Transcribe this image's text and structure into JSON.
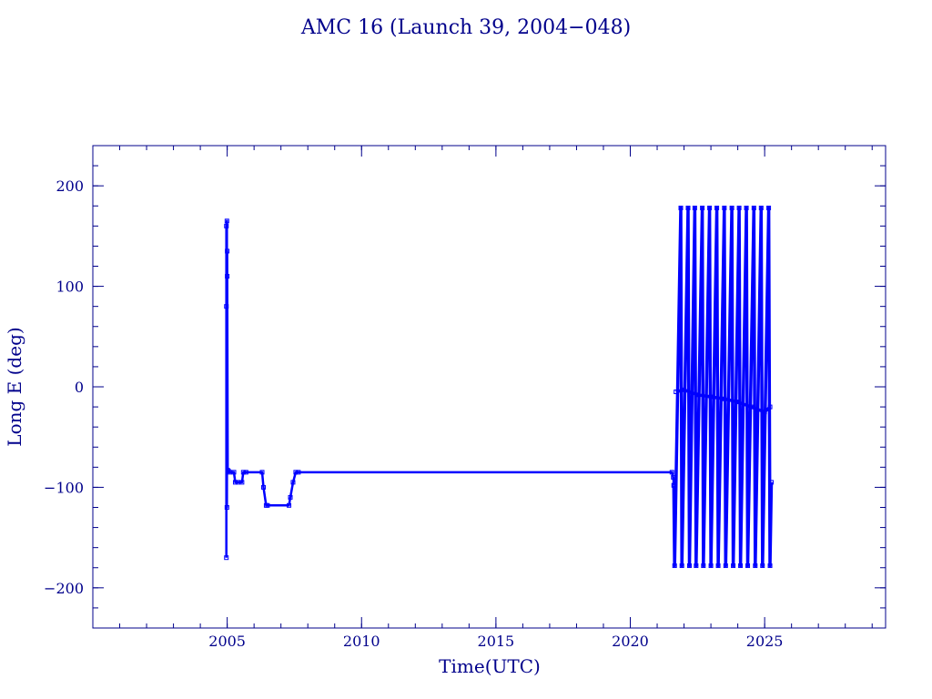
{
  "chart_data": {
    "type": "line",
    "title": "AMC 16 (Launch 39, 2004−048)",
    "xlabel": "Time(UTC)",
    "ylabel": "Long E (deg)",
    "xlim": [
      2000.0,
      2029.5
    ],
    "ylim": [
      -240,
      240
    ],
    "x_ticks": [
      2005,
      2010,
      2015,
      2020,
      2025
    ],
    "x_tick_labels": [
      "2005",
      "2010",
      "2015",
      "2020",
      "2025"
    ],
    "y_ticks": [
      -200,
      -100,
      0,
      100,
      200
    ],
    "y_tick_labels": [
      "−200",
      "−100",
      "0",
      "100",
      "200"
    ],
    "grid": false,
    "legend": "none",
    "colors": {
      "series": "#0000ff",
      "axes": "#00008b",
      "text": "#00008b"
    },
    "series": [
      {
        "x": [
          2004.97,
          2004.97,
          2004.97,
          2004.99,
          2004.99,
          2005.0,
          2005.0,
          2005.02,
          2005.05,
          2005.1,
          2005.25,
          2005.3,
          2005.4,
          2005.55,
          2005.6,
          2005.7,
          2006.3,
          2006.35,
          2006.45,
          2006.5,
          2007.3,
          2007.35,
          2007.45,
          2007.55,
          2007.65,
          2021.55,
          2021.6,
          2021.62
        ],
        "y": [
          -170,
          80,
          160,
          165,
          -120,
          110,
          135,
          -83,
          -84,
          -85,
          -85,
          -95,
          -95,
          -95,
          -85,
          -85,
          -85,
          -100,
          -118,
          -118,
          -118,
          -110,
          -95,
          -85,
          -85,
          -85,
          -90,
          -98
        ]
      },
      {
        "x": [
          2021.62,
          2021.65,
          2021.88,
          2021.92,
          2022.15,
          2022.2,
          2022.4,
          2022.45,
          2022.68,
          2022.72,
          2022.95,
          2023.0,
          2023.22,
          2023.27,
          2023.5,
          2023.55,
          2023.78,
          2023.83,
          2024.05,
          2024.1,
          2024.32,
          2024.37,
          2024.6,
          2024.65,
          2024.87,
          2024.92,
          2025.15,
          2025.2,
          2025.25
        ],
        "y": [
          -98,
          -178,
          178,
          -178,
          178,
          -178,
          178,
          -178,
          178,
          -178,
          178,
          -178,
          178,
          -178,
          178,
          -178,
          178,
          -178,
          178,
          -178,
          178,
          -178,
          178,
          -178,
          178,
          -178,
          178,
          -178,
          -95
        ]
      },
      {
        "x": [
          2021.7,
          2022.0,
          2022.5,
          2023.0,
          2023.5,
          2024.0,
          2024.5,
          2025.0,
          2025.2
        ],
        "y": [
          -5,
          -3,
          -8,
          -10,
          -12,
          -15,
          -20,
          -25,
          -20
        ]
      }
    ]
  }
}
